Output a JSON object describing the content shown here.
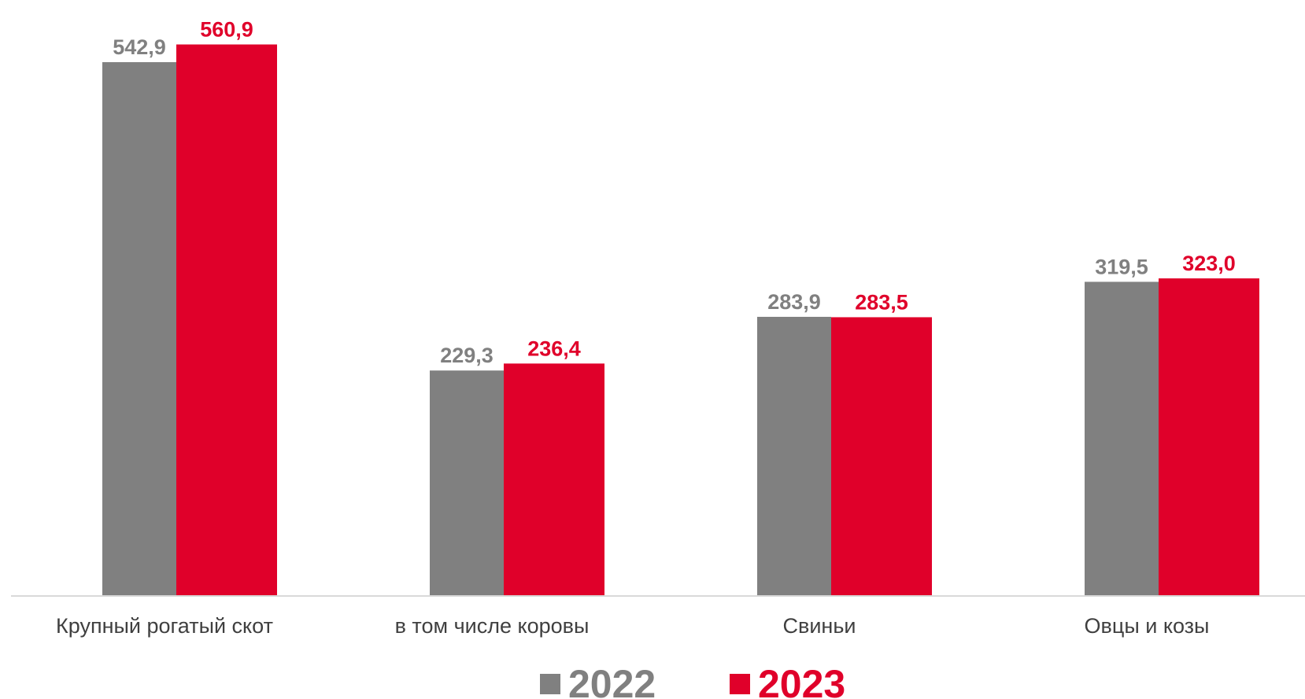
{
  "chart_data": {
    "type": "bar",
    "categories": [
      "Крупный рогатый скот",
      "в том числе коровы",
      "Свиньи",
      "Овцы и козы"
    ],
    "series": [
      {
        "name": "2022",
        "color": "#808080",
        "values": [
          542.9,
          229.3,
          283.9,
          319.5
        ],
        "labels": [
          "542,9",
          "229,3",
          "283,9",
          "319,5"
        ]
      },
      {
        "name": "2023",
        "color": "#e0002a",
        "values": [
          560.9,
          236.4,
          283.5,
          323.0
        ],
        "labels": [
          "560,9",
          "236,4",
          "283,5",
          "323,0"
        ]
      }
    ],
    "ylim": [
      0,
      575
    ],
    "grid": false,
    "legend_position": "bottom-center",
    "axis_color": "#d9d9d9"
  }
}
